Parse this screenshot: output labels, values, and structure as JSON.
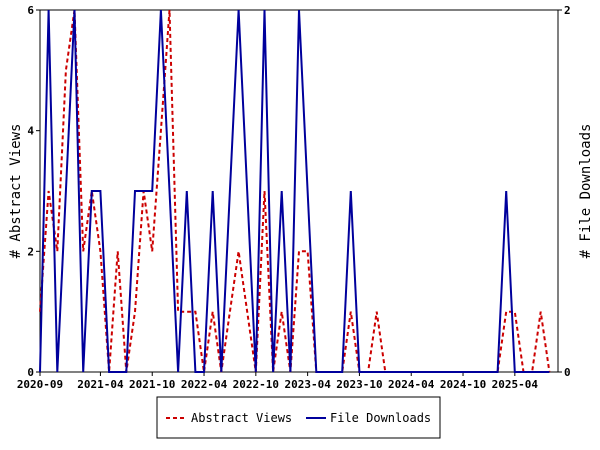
{
  "chart_data": {
    "type": "line",
    "title": "",
    "xlabel": "",
    "ylabel": "# Abstract Views",
    "y2label": "# File Downloads",
    "x_tick_labels": [
      "2020-09",
      "2021-04",
      "2021-10",
      "2022-04",
      "2022-10",
      "2023-04",
      "2023-10",
      "2024-04",
      "2024-10",
      "2025-04"
    ],
    "y_ticks": [
      "0",
      "2",
      "4",
      "6"
    ],
    "y2_ticks": [
      "0",
      "2"
    ],
    "ylim": [
      0,
      6
    ],
    "y2lim": [
      0,
      2
    ],
    "grid": false,
    "legend_position": "bottom",
    "series": [
      {
        "name": "Abstract Views",
        "color": "#cc0000",
        "axis": "left",
        "points": [
          {
            "x": "2020-09",
            "y": 1
          },
          {
            "x": "2020-10",
            "y": 3
          },
          {
            "x": "2020-11",
            "y": 2
          },
          {
            "x": "2020-12",
            "y": 5
          },
          {
            "x": "2021-01",
            "y": 6
          },
          {
            "x": "2021-02",
            "y": 2
          },
          {
            "x": "2021-03",
            "y": 3
          },
          {
            "x": "2021-04",
            "y": 2
          },
          {
            "x": "2021-05",
            "y": 0
          },
          {
            "x": "2021-06",
            "y": 2
          },
          {
            "x": "2021-07",
            "y": 0
          },
          {
            "x": "2021-08",
            "y": 1
          },
          {
            "x": "2021-09",
            "y": 3
          },
          {
            "x": "2021-10",
            "y": 2
          },
          {
            "x": "2021-11",
            "y": 4
          },
          {
            "x": "2021-12",
            "y": 6
          },
          {
            "x": "2022-01",
            "y": 1
          },
          {
            "x": "2022-02",
            "y": 1
          },
          {
            "x": "2022-03",
            "y": 1
          },
          {
            "x": "2022-04",
            "y": 0
          },
          {
            "x": "2022-05",
            "y": 1
          },
          {
            "x": "2022-06",
            "y": 0
          },
          {
            "x": "2022-07",
            "y": 1
          },
          {
            "x": "2022-08",
            "y": 2
          },
          {
            "x": "2022-09",
            "y": 1
          },
          {
            "x": "2022-10",
            "y": 0
          },
          {
            "x": "2022-11",
            "y": 3
          },
          {
            "x": "2022-12",
            "y": 0
          },
          {
            "x": "2023-01",
            "y": 1
          },
          {
            "x": "2023-02",
            "y": 0
          },
          {
            "x": "2023-03",
            "y": 2
          },
          {
            "x": "2023-04",
            "y": 2
          },
          {
            "x": "2023-05",
            "y": 0
          },
          {
            "x": "2023-06",
            "y": 0
          },
          {
            "x": "2023-07",
            "y": 0
          },
          {
            "x": "2023-08",
            "y": 0
          },
          {
            "x": "2023-09",
            "y": 1
          },
          {
            "x": "2023-10",
            "y": 0
          },
          {
            "x": "2023-11",
            "y": 0
          },
          {
            "x": "2023-12",
            "y": 1
          },
          {
            "x": "2024-01",
            "y": 0
          },
          {
            "x": "2024-02",
            "y": 0
          },
          {
            "x": "2024-03",
            "y": 0
          },
          {
            "x": "2024-04",
            "y": 0
          },
          {
            "x": "2024-05",
            "y": 0
          },
          {
            "x": "2024-06",
            "y": 0
          },
          {
            "x": "2024-07",
            "y": 0
          },
          {
            "x": "2024-08",
            "y": 0
          },
          {
            "x": "2024-09",
            "y": 0
          },
          {
            "x": "2024-10",
            "y": 0
          },
          {
            "x": "2024-11",
            "y": 0
          },
          {
            "x": "2024-12",
            "y": 0
          },
          {
            "x": "2025-01",
            "y": 0
          },
          {
            "x": "2025-02",
            "y": 0
          },
          {
            "x": "2025-03",
            "y": 1
          },
          {
            "x": "2025-04",
            "y": 1
          },
          {
            "x": "2025-05",
            "y": 0
          },
          {
            "x": "2025-06",
            "y": 0
          },
          {
            "x": "2025-07",
            "y": 1
          },
          {
            "x": "2025-08",
            "y": 0
          }
        ]
      },
      {
        "name": "File Downloads",
        "color": "#00009c",
        "axis": "right",
        "points": [
          {
            "x": "2020-09",
            "y": 0
          },
          {
            "x": "2020-10",
            "y": 2
          },
          {
            "x": "2020-11",
            "y": 0
          },
          {
            "x": "2020-12",
            "y": 1
          },
          {
            "x": "2021-01",
            "y": 2
          },
          {
            "x": "2021-02",
            "y": 0
          },
          {
            "x": "2021-03",
            "y": 1
          },
          {
            "x": "2021-04",
            "y": 1
          },
          {
            "x": "2021-05",
            "y": 0
          },
          {
            "x": "2021-06",
            "y": 0
          },
          {
            "x": "2021-07",
            "y": 0
          },
          {
            "x": "2021-08",
            "y": 1
          },
          {
            "x": "2021-09",
            "y": 1
          },
          {
            "x": "2021-10",
            "y": 1
          },
          {
            "x": "2021-11",
            "y": 2
          },
          {
            "x": "2021-12",
            "y": 1
          },
          {
            "x": "2022-01",
            "y": 0
          },
          {
            "x": "2022-02",
            "y": 1
          },
          {
            "x": "2022-03",
            "y": 0
          },
          {
            "x": "2022-04",
            "y": 0
          },
          {
            "x": "2022-05",
            "y": 1
          },
          {
            "x": "2022-06",
            "y": 0
          },
          {
            "x": "2022-07",
            "y": 1
          },
          {
            "x": "2022-08",
            "y": 2
          },
          {
            "x": "2022-09",
            "y": 1
          },
          {
            "x": "2022-10",
            "y": 0
          },
          {
            "x": "2022-11",
            "y": 2
          },
          {
            "x": "2022-12",
            "y": 0
          },
          {
            "x": "2023-01",
            "y": 1
          },
          {
            "x": "2023-02",
            "y": 0
          },
          {
            "x": "2023-03",
            "y": 2
          },
          {
            "x": "2023-04",
            "y": 1
          },
          {
            "x": "2023-05",
            "y": 0
          },
          {
            "x": "2023-06",
            "y": 0
          },
          {
            "x": "2023-07",
            "y": 0
          },
          {
            "x": "2023-08",
            "y": 0
          },
          {
            "x": "2023-09",
            "y": 1
          },
          {
            "x": "2023-10",
            "y": 0
          },
          {
            "x": "2023-11",
            "y": 0
          },
          {
            "x": "2023-12",
            "y": 0
          },
          {
            "x": "2024-01",
            "y": 0
          },
          {
            "x": "2024-02",
            "y": 0
          },
          {
            "x": "2024-03",
            "y": 0
          },
          {
            "x": "2024-04",
            "y": 0
          },
          {
            "x": "2024-05",
            "y": 0
          },
          {
            "x": "2024-06",
            "y": 0
          },
          {
            "x": "2024-07",
            "y": 0
          },
          {
            "x": "2024-08",
            "y": 0
          },
          {
            "x": "2024-09",
            "y": 0
          },
          {
            "x": "2024-10",
            "y": 0
          },
          {
            "x": "2024-11",
            "y": 0
          },
          {
            "x": "2024-12",
            "y": 0
          },
          {
            "x": "2025-01",
            "y": 0
          },
          {
            "x": "2025-02",
            "y": 0
          },
          {
            "x": "2025-03",
            "y": 1
          },
          {
            "x": "2025-04",
            "y": 0
          },
          {
            "x": "2025-05",
            "y": 0
          },
          {
            "x": "2025-06",
            "y": 0
          },
          {
            "x": "2025-07",
            "y": 0
          },
          {
            "x": "2025-08",
            "y": 0
          }
        ]
      }
    ]
  }
}
